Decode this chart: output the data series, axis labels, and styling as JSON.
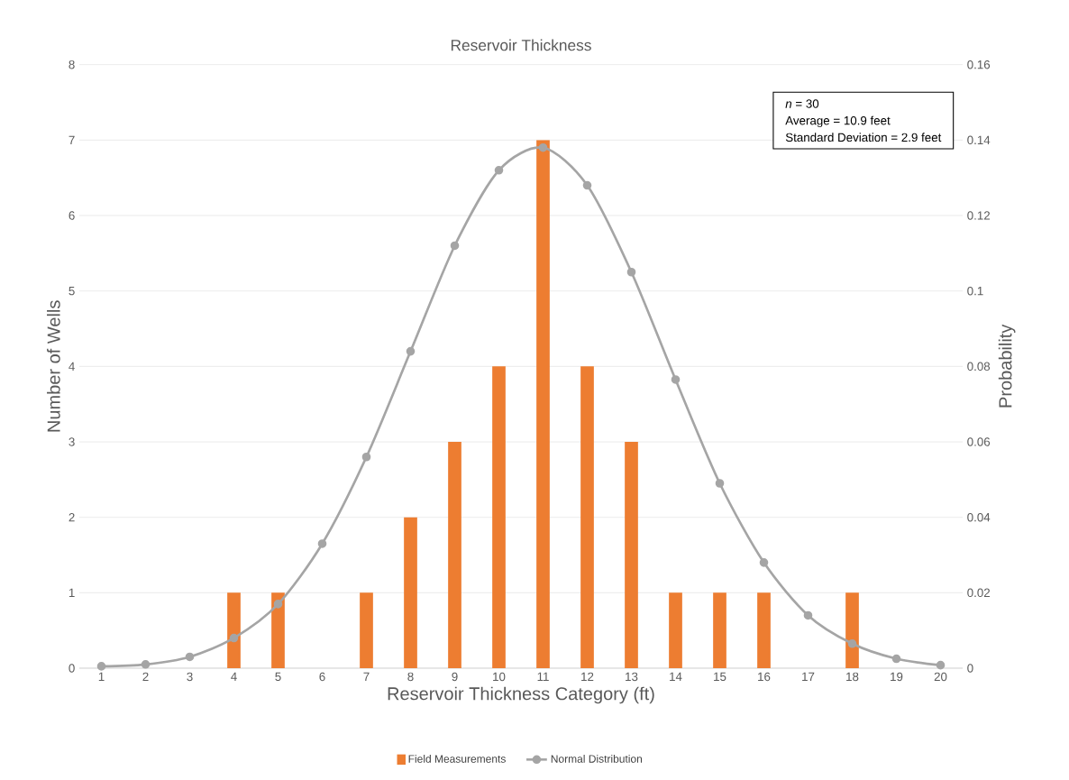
{
  "chart_data": {
    "type": "bar",
    "title": "Reservoir Thickness",
    "xlabel": "Reservoir Thickness Category (ft)",
    "ylabel": "Number of Wells",
    "y2label": "Probability",
    "categories": [
      "1",
      "2",
      "3",
      "4",
      "5",
      "6",
      "7",
      "8",
      "9",
      "10",
      "11",
      "12",
      "13",
      "14",
      "15",
      "16",
      "17",
      "18",
      "19",
      "20"
    ],
    "series": [
      {
        "name": "Field Measurements",
        "color": "#ed7d31",
        "values": [
          0,
          0,
          0,
          1,
          1,
          0,
          1,
          2,
          3,
          4,
          7,
          4,
          3,
          1,
          1,
          1,
          0,
          1,
          0,
          0
        ]
      },
      {
        "name": "Normal Distribution",
        "type": "line",
        "axis": "y2",
        "color": "#a5a5a5",
        "values": [
          0.0005,
          0.001,
          0.003,
          0.008,
          0.017,
          0.033,
          0.056,
          0.084,
          0.112,
          0.132,
          0.138,
          0.128,
          0.105,
          0.0765,
          0.049,
          0.028,
          0.014,
          0.0065,
          0.0025,
          0.0008
        ]
      }
    ],
    "ylim": [
      0,
      8
    ],
    "yticks": [
      0,
      1,
      2,
      3,
      4,
      5,
      6,
      7,
      8
    ],
    "y2lim": [
      0,
      0.16
    ],
    "y2ticks": [
      0,
      0.02,
      0.04,
      0.06,
      0.08,
      0.1,
      0.12,
      0.14,
      0.16
    ],
    "grid": "y",
    "legend": "bottom",
    "marker": "circle",
    "annotations": [
      "*n* = 30",
      "Average = 10.9 feet",
      "Standard Deviation = 2.9 feet"
    ]
  }
}
